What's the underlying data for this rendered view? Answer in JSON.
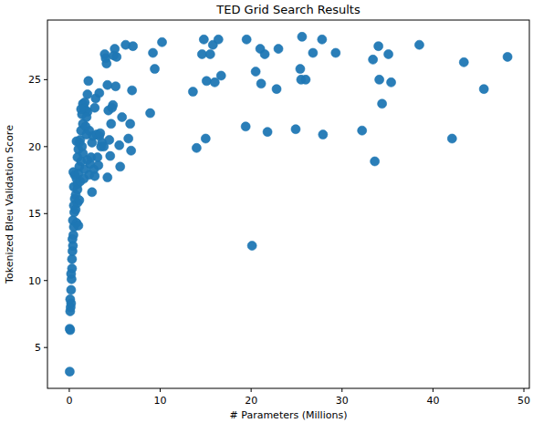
{
  "chart_data": {
    "type": "scatter",
    "title": "TED Grid Search Results",
    "x_label": "# Parameters (Millions)",
    "y_label": "Tokenized Bleu Validation Score",
    "color": "#1f77b4",
    "marker": "circle",
    "grid": false,
    "xlim": [
      -2.4,
      50.6
    ],
    "ylim": [
      1.95,
      29.45
    ],
    "xticks": [
      0,
      10,
      20,
      30,
      40,
      50
    ],
    "yticks": [
      5,
      10,
      15,
      20,
      25
    ],
    "x": [
      0.05,
      0.05,
      0.1,
      0.1,
      0.15,
      0.2,
      0.1,
      0.2,
      0.25,
      0.2,
      0.3,
      0.3,
      0.35,
      0.4,
      0.35,
      0.45,
      0.5,
      0.4,
      0.55,
      0.5,
      0.6,
      0.7,
      0.5,
      0.6,
      0.45,
      0.8,
      0.9,
      0.9,
      0.7,
      0.8,
      1.0,
      0.9,
      1.1,
      1.2,
      1.0,
      1.1,
      1.3,
      0.9,
      1.0,
      1.1,
      1.2,
      1.4,
      1.5,
      1.3,
      1.5,
      1.4,
      1.6,
      1.5,
      1.7,
      1.8,
      2.0,
      2.0,
      2.1,
      1.8,
      1.9,
      2.0,
      1.7,
      1.6,
      2.2,
      2.3,
      2.4,
      2.2,
      2.5,
      2.6,
      2.5,
      2.7,
      2.8,
      2.8,
      2.9,
      3.0,
      3.1,
      3.2,
      3.3,
      3.4,
      3.3,
      3.5,
      3.6,
      3.8,
      4.0,
      3.9,
      4.1,
      4.2,
      4.3,
      4.2,
      4.4,
      4.5,
      4.6,
      4.7,
      4.8,
      4.9,
      5.0,
      5.1,
      5.2,
      5.5,
      5.6,
      5.8,
      6.2,
      6.5,
      6.7,
      6.8,
      6.9,
      7.0,
      8.9,
      9.2,
      9.4,
      10.2,
      13.6,
      14.0,
      14.6,
      14.8,
      15.0,
      15.1,
      15.5,
      15.8,
      16.0,
      16.4,
      16.7,
      19.5,
      19.4,
      20.1,
      20.5,
      21.0,
      21.1,
      21.5,
      21.8,
      22.8,
      23.0,
      24.9,
      25.4,
      25.6,
      25.5,
      26.0,
      26.8,
      27.8,
      27.9,
      29.3,
      32.2,
      33.4,
      33.6,
      34.0,
      34.1,
      34.4,
      35.1,
      35.4,
      38.5,
      42.1,
      43.4,
      45.6,
      48.2,
      0.8,
      1.3,
      1.9
    ],
    "values": [
      3.2,
      6.4,
      6.3,
      7.7,
      8.0,
      8.3,
      8.6,
      9.3,
      10.1,
      10.5,
      10.9,
      11.6,
      12.2,
      12.6,
      13.1,
      13.4,
      14.0,
      14.5,
      15.1,
      15.6,
      16.1,
      16.4,
      17.0,
      17.9,
      18.1,
      17.6,
      17.2,
      16.8,
      15.3,
      14.3,
      14.1,
      15.8,
      16.0,
      17.4,
      18.0,
      18.5,
      18.9,
      19.2,
      19.8,
      20.3,
      20.5,
      20.0,
      19.5,
      21.2,
      21.7,
      22.4,
      22.9,
      23.2,
      23.3,
      22.7,
      22.6,
      23.9,
      24.9,
      21.5,
      20.9,
      19.0,
      18.3,
      17.6,
      17.9,
      18.7,
      19.2,
      21.2,
      20.3,
      20.8,
      16.6,
      18.3,
      17.8,
      22.9,
      23.6,
      20.9,
      19.2,
      18.6,
      20.8,
      21.0,
      24.0,
      20.0,
      20.3,
      20.0,
      26.6,
      26.9,
      26.2,
      24.6,
      22.7,
      17.7,
      20.5,
      19.3,
      21.7,
      22.9,
      23.1,
      26.8,
      27.3,
      24.5,
      26.7,
      20.1,
      18.5,
      22.2,
      27.6,
      20.6,
      21.7,
      19.7,
      24.2,
      27.5,
      22.5,
      27.0,
      25.8,
      27.8,
      24.1,
      19.9,
      26.9,
      28.0,
      20.6,
      24.9,
      26.9,
      27.6,
      24.8,
      28.0,
      25.3,
      28.0,
      21.5,
      12.6,
      25.6,
      27.3,
      24.7,
      26.9,
      21.1,
      24.3,
      27.3,
      21.3,
      25.8,
      28.2,
      25.0,
      25.0,
      27.0,
      28.0,
      20.9,
      27.0,
      21.2,
      26.5,
      18.9,
      27.5,
      25.0,
      23.2,
      26.9,
      24.8,
      27.6,
      20.6,
      26.3,
      24.3,
      26.7,
      20.4,
      22.8,
      22.2
    ]
  }
}
